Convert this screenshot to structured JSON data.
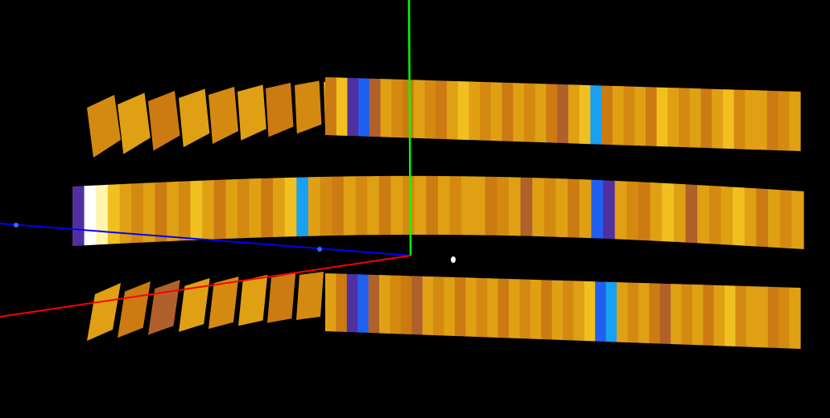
{
  "scene": {
    "background": "#000000",
    "palette": {
      "gold": "#E0A014",
      "amber": "#D48A10",
      "orange": "#CC7A12",
      "yellow": "#F0C020",
      "brown": "#B0602A",
      "purple": "#5030A0",
      "blue": "#2060F0",
      "cyan": "#1AA0F0",
      "white": "#FFFFFF",
      "paleyellow": "#FFF4B0"
    },
    "axes": {
      "x_color": "#FF0000",
      "y_color": "#00FF00",
      "z_color": "#0000FF",
      "marker_color": "#3070FF"
    },
    "origin_marker_color": "#FFFFFF",
    "upper_ring": {
      "colors": [
        "amber",
        "gold",
        "orange",
        "gold",
        "amber",
        "gold",
        "orange",
        "amber",
        "gold",
        "orange",
        "yellow",
        "purple",
        "blue",
        "brown",
        "gold",
        "amber",
        "orange",
        "gold",
        "amber",
        "orange",
        "gold",
        "yellow",
        "gold",
        "amber",
        "gold",
        "orange",
        "gold",
        "amber",
        "gold",
        "orange",
        "brown",
        "gold",
        "yellow",
        "cyan",
        "orange",
        "gold",
        "amber",
        "gold",
        "orange",
        "yellow",
        "gold",
        "amber",
        "gold",
        "orange",
        "gold",
        "yellow",
        "amber",
        "gold",
        "gold",
        "orange",
        "amber",
        "gold"
      ]
    },
    "middle_ring": {
      "colors": [
        "purple",
        "white",
        "paleyellow",
        "yellow",
        "gold",
        "amber",
        "gold",
        "orange",
        "gold",
        "amber",
        "yellow",
        "gold",
        "orange",
        "gold",
        "amber",
        "gold",
        "orange",
        "gold",
        "yellow",
        "cyan",
        "gold",
        "amber",
        "orange",
        "gold",
        "amber",
        "gold",
        "orange",
        "gold",
        "amber",
        "gold",
        "orange",
        "gold",
        "amber",
        "gold",
        "gold",
        "orange",
        "amber",
        "gold",
        "brown",
        "gold",
        "amber",
        "gold",
        "orange",
        "gold",
        "blue",
        "purple",
        "gold",
        "amber",
        "orange",
        "gold",
        "yellow",
        "gold",
        "brown",
        "gold",
        "amber",
        "gold",
        "yellow",
        "gold",
        "orange",
        "gold",
        "amber",
        "gold"
      ]
    },
    "lower_ring": {
      "colors": [
        "gold",
        "orange",
        "brown",
        "gold",
        "amber",
        "gold",
        "orange",
        "amber",
        "gold",
        "orange",
        "purple",
        "blue",
        "brown",
        "gold",
        "amber",
        "orange",
        "brown",
        "gold",
        "amber",
        "gold",
        "orange",
        "gold",
        "amber",
        "gold",
        "orange",
        "gold",
        "amber",
        "gold",
        "orange",
        "gold",
        "amber",
        "gold",
        "yellow",
        "blue",
        "cyan",
        "gold",
        "amber",
        "gold",
        "orange",
        "brown",
        "gold",
        "amber",
        "gold",
        "orange",
        "gold",
        "yellow",
        "amber",
        "gold",
        "gold",
        "orange",
        "amber",
        "gold"
      ]
    }
  }
}
